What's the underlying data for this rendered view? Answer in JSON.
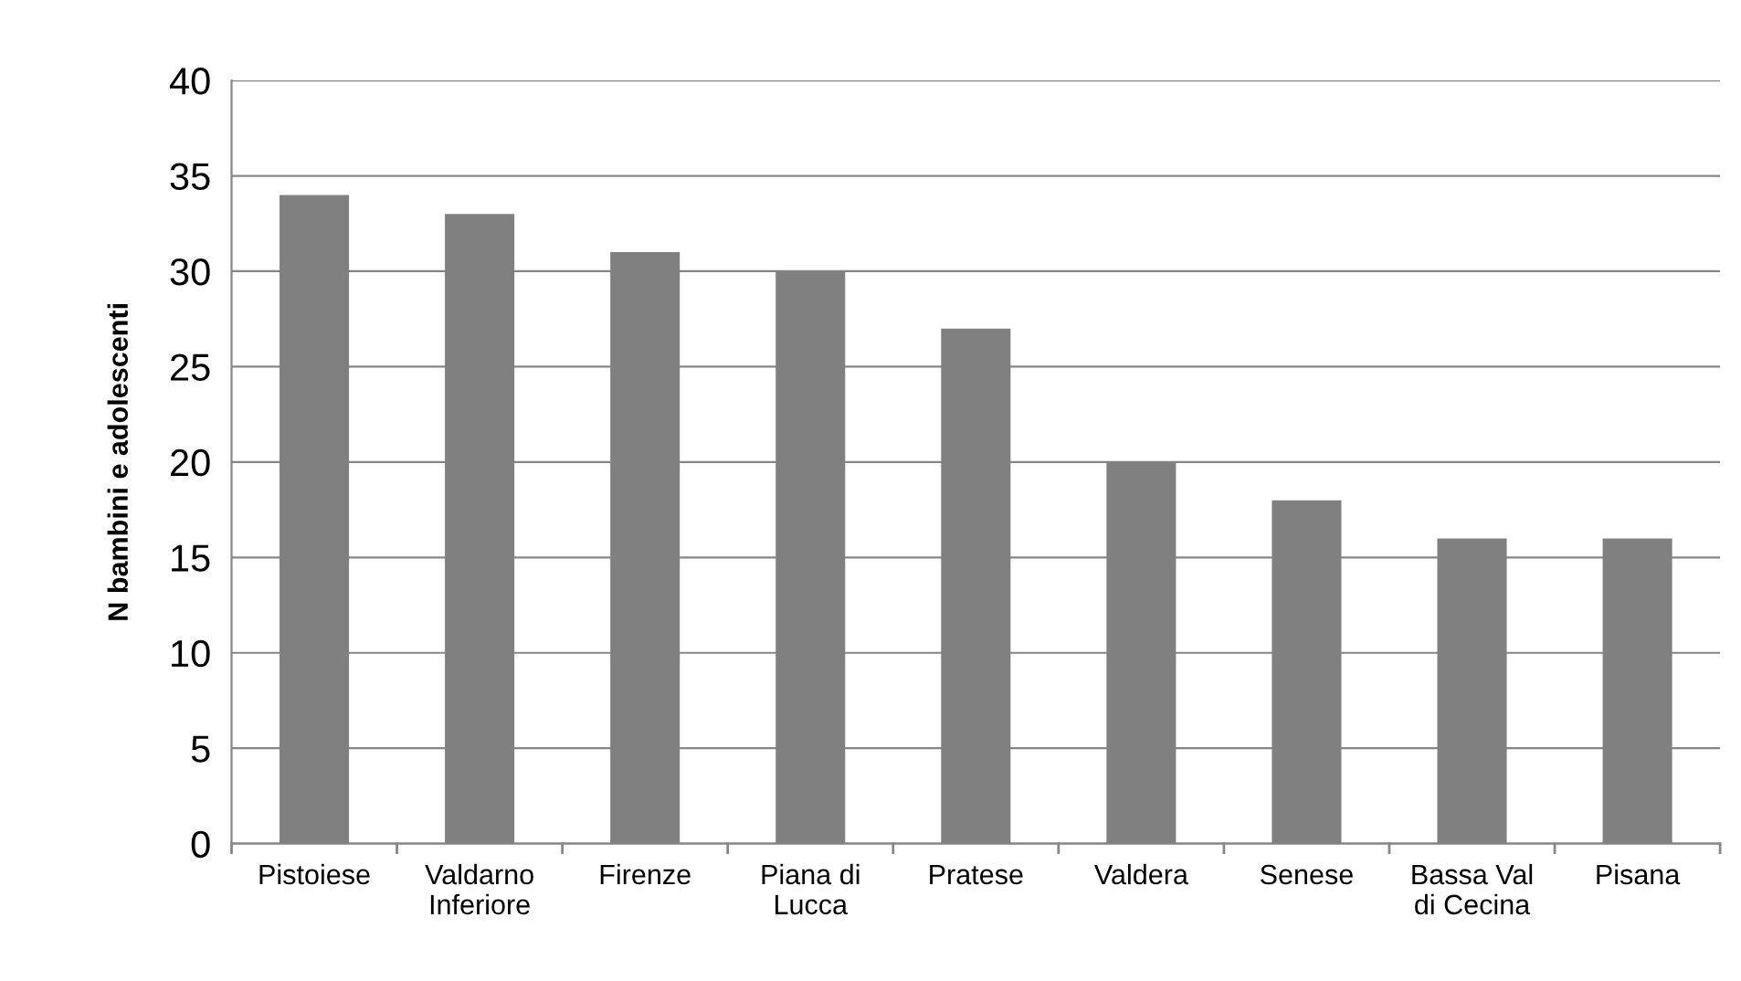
{
  "chart_data": {
    "type": "bar",
    "ylabel": "N bambini e adolescenti",
    "categories": [
      "Pistoiese",
      "Valdarno\nInferiore",
      "Firenze",
      "Piana di\nLucca",
      "Pratese",
      "Valdera",
      "Senese",
      "Bassa Val\ndi Cecina",
      "Pisana"
    ],
    "values": [
      34,
      33,
      31,
      30,
      27,
      20,
      18,
      16,
      16
    ],
    "color": "#808080",
    "ylim": [
      0,
      40
    ],
    "yticks": [
      0,
      5,
      10,
      15,
      20,
      25,
      30,
      35,
      40
    ],
    "grid": "y"
  }
}
